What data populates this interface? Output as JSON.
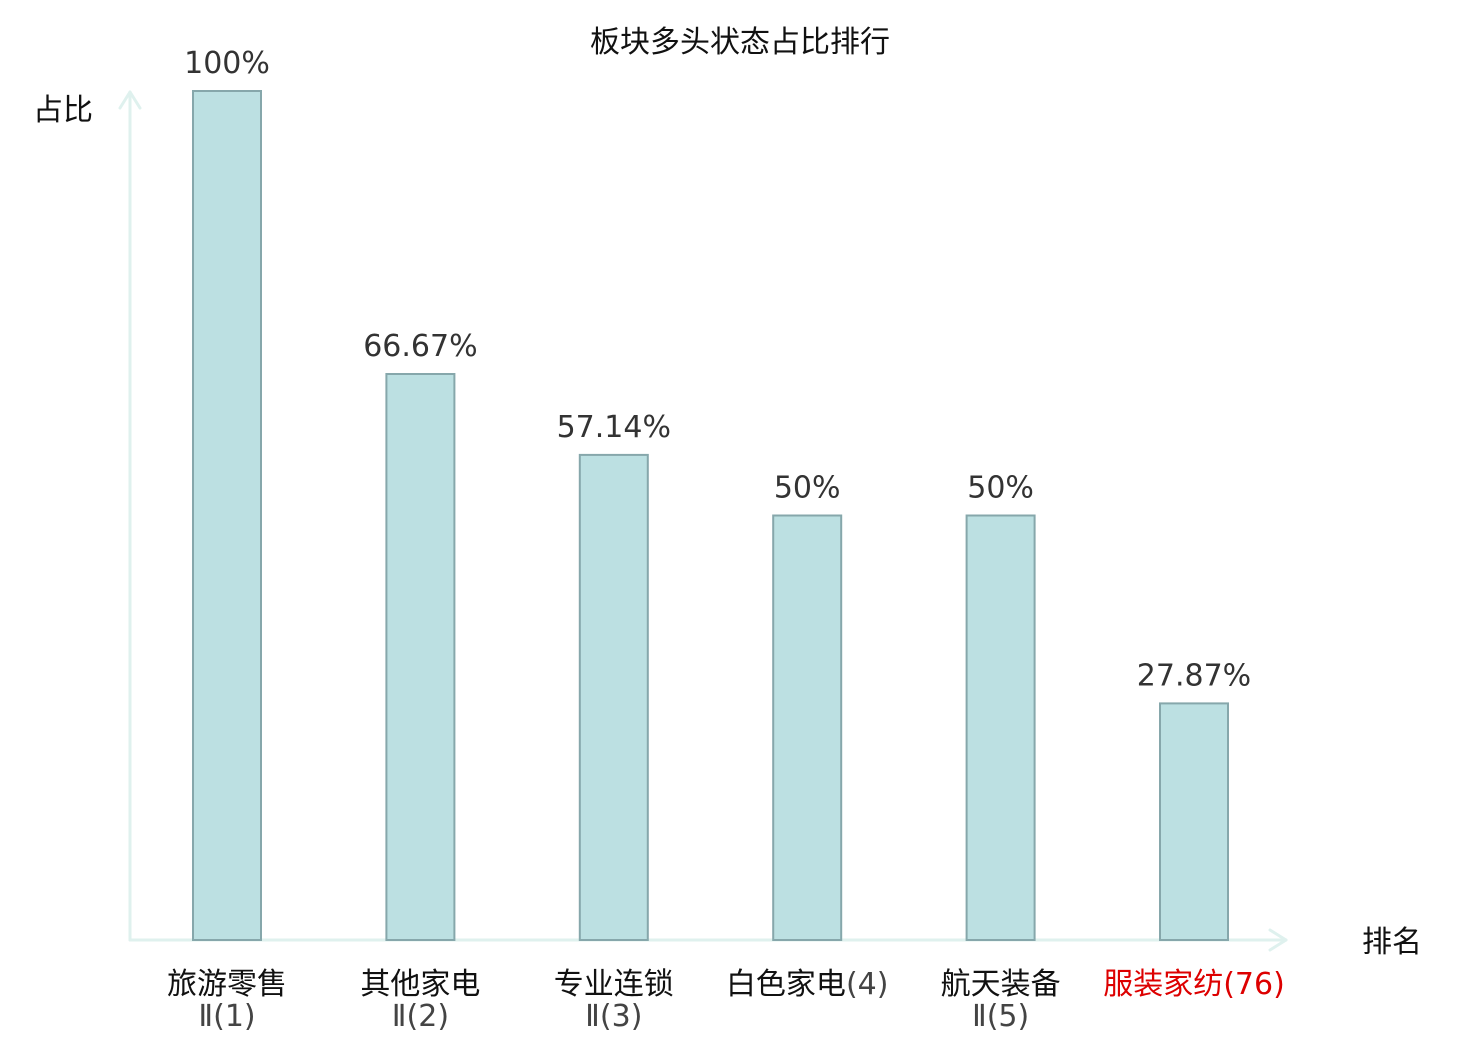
{
  "colors": {
    "bar_fill": "#bce0e2",
    "bar_stroke": "#86a7ab",
    "axis": "#dff1ee",
    "text": "#111111",
    "value_text": "#333333",
    "highlight": "#dd0000",
    "sub_label": "#444444"
  },
  "chart_data": {
    "type": "bar",
    "title": "板块多头状态占比排行",
    "xlabel": "排名",
    "ylabel": "占比",
    "ylim": [
      0,
      100
    ],
    "grid": false,
    "categories": [
      {
        "name": "旅游零售",
        "suffix": "",
        "sub": "Ⅱ(1)",
        "highlight": false
      },
      {
        "name": "其他家电",
        "suffix": "",
        "sub": "Ⅱ(2)",
        "highlight": false
      },
      {
        "name": "专业连锁",
        "suffix": "",
        "sub": "Ⅱ(3)",
        "highlight": false
      },
      {
        "name": "白色家电",
        "suffix": "(4)",
        "sub": "",
        "highlight": false
      },
      {
        "name": "航天装备",
        "suffix": "",
        "sub": "Ⅱ(5)",
        "highlight": false
      },
      {
        "name": "服装家纺",
        "suffix": "(76)",
        "sub": "",
        "highlight": true
      }
    ],
    "values": [
      100,
      66.67,
      57.14,
      50,
      50,
      27.87
    ],
    "value_labels": [
      "100%",
      "66.67%",
      "57.14%",
      "50%",
      "50%",
      "27.87%"
    ]
  }
}
